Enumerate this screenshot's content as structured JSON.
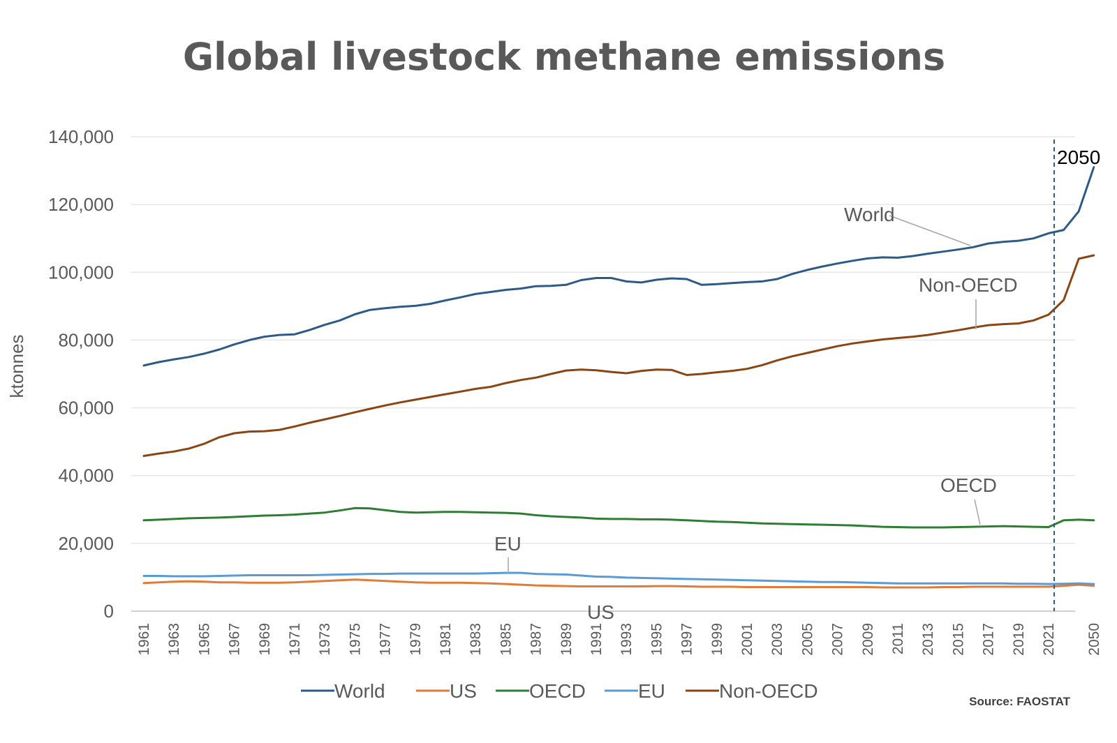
{
  "chart_data": {
    "type": "line",
    "title": "Global livestock methane emissions",
    "ylabel": "ktonnes",
    "xlabel": "",
    "ylim": [
      0,
      140000
    ],
    "y_ticks": [
      0,
      20000,
      40000,
      60000,
      80000,
      100000,
      120000,
      140000
    ],
    "y_tick_labels": [
      "0",
      "20,000",
      "40,000",
      "60,000",
      "80,000",
      "100,000",
      "120,000",
      "140,000"
    ],
    "x": [
      1961,
      1962,
      1963,
      1964,
      1965,
      1966,
      1967,
      1968,
      1969,
      1970,
      1971,
      1972,
      1973,
      1974,
      1975,
      1976,
      1977,
      1978,
      1979,
      1980,
      1981,
      1982,
      1983,
      1984,
      1985,
      1986,
      1987,
      1988,
      1989,
      1990,
      1991,
      1992,
      1993,
      1994,
      1995,
      1996,
      1997,
      1998,
      1999,
      2000,
      2001,
      2002,
      2003,
      2004,
      2005,
      2006,
      2007,
      2008,
      2009,
      2010,
      2011,
      2012,
      2013,
      2014,
      2015,
      2016,
      2017,
      2018,
      2019,
      2020,
      2021,
      2030,
      2040,
      2050
    ],
    "x_tick_labels": [
      "1961",
      "1963",
      "1965",
      "1967",
      "1969",
      "1971",
      "1973",
      "1975",
      "1977",
      "1979",
      "1981",
      "1983",
      "1985",
      "1987",
      "1989",
      "1991",
      "1993",
      "1995",
      "1997",
      "1999",
      "2001",
      "2003",
      "2005",
      "2007",
      "2009",
      "2011",
      "2013",
      "2015",
      "2017",
      "2019",
      "2021",
      "2050"
    ],
    "grid": true,
    "legend_position": "bottom",
    "series": [
      {
        "name": "World",
        "color": "#2e5a87",
        "values": [
          72500,
          73500,
          74300,
          75000,
          76000,
          77200,
          78700,
          80000,
          81000,
          81500,
          81700,
          83000,
          84500,
          85800,
          87600,
          88900,
          89400,
          89800,
          90100,
          90700,
          91700,
          92600,
          93600,
          94200,
          94800,
          95200,
          95900,
          96000,
          96300,
          97700,
          98300,
          98300,
          97300,
          97000,
          97800,
          98200,
          98000,
          96300,
          96500,
          96800,
          97100,
          97300,
          98000,
          99500,
          100700,
          101700,
          102600,
          103400,
          104100,
          104400,
          104300,
          104800,
          105500,
          106100,
          106700,
          107400,
          108500,
          109000,
          109300,
          110000,
          111500,
          112500,
          118000,
          131000
        ]
      },
      {
        "name": "US",
        "color": "#e07b39",
        "values": [
          8300,
          8500,
          8700,
          8800,
          8700,
          8500,
          8500,
          8400,
          8400,
          8400,
          8500,
          8700,
          8900,
          9100,
          9300,
          9100,
          8900,
          8700,
          8500,
          8400,
          8400,
          8400,
          8300,
          8200,
          8000,
          7800,
          7600,
          7500,
          7400,
          7300,
          7300,
          7300,
          7300,
          7300,
          7400,
          7400,
          7300,
          7200,
          7200,
          7200,
          7100,
          7100,
          7100,
          7100,
          7100,
          7100,
          7100,
          7100,
          7100,
          7000,
          7000,
          7000,
          7000,
          7100,
          7100,
          7200,
          7200,
          7200,
          7200,
          7200,
          7200,
          7500,
          7800,
          7500
        ]
      },
      {
        "name": "OECD",
        "color": "#2e7d32",
        "values": [
          26800,
          27000,
          27200,
          27400,
          27500,
          27600,
          27800,
          28000,
          28200,
          28300,
          28500,
          28800,
          29100,
          29700,
          30400,
          30300,
          29800,
          29300,
          29100,
          29200,
          29300,
          29300,
          29200,
          29100,
          29000,
          28800,
          28300,
          28000,
          27800,
          27600,
          27300,
          27200,
          27200,
          27100,
          27100,
          27000,
          26800,
          26600,
          26400,
          26300,
          26100,
          25900,
          25800,
          25700,
          25600,
          25500,
          25400,
          25300,
          25100,
          24900,
          24800,
          24700,
          24700,
          24700,
          24800,
          24900,
          25000,
          25100,
          25000,
          24900,
          24800,
          26800,
          27000,
          26800
        ]
      },
      {
        "name": "EU",
        "color": "#5b9bd5",
        "values": [
          10400,
          10400,
          10300,
          10300,
          10300,
          10400,
          10500,
          10600,
          10600,
          10600,
          10600,
          10600,
          10700,
          10800,
          10900,
          11000,
          11000,
          11100,
          11100,
          11100,
          11100,
          11100,
          11100,
          11200,
          11300,
          11300,
          11000,
          10900,
          10800,
          10500,
          10200,
          10100,
          9900,
          9800,
          9700,
          9600,
          9500,
          9400,
          9300,
          9200,
          9100,
          9000,
          8900,
          8800,
          8700,
          8600,
          8600,
          8500,
          8400,
          8300,
          8200,
          8200,
          8200,
          8200,
          8200,
          8200,
          8200,
          8200,
          8100,
          8100,
          8000,
          8100,
          8200,
          8000
        ]
      },
      {
        "name": "Non-OECD",
        "color": "#8b4513",
        "values": [
          45800,
          46500,
          47100,
          48000,
          49400,
          51300,
          52500,
          53000,
          53100,
          53500,
          54500,
          55600,
          56600,
          57600,
          58700,
          59700,
          60700,
          61600,
          62400,
          63200,
          64000,
          64800,
          65600,
          66200,
          67300,
          68200,
          68900,
          70000,
          71000,
          71300,
          71100,
          70600,
          70200,
          70900,
          71300,
          71200,
          69700,
          70000,
          70500,
          70900,
          71500,
          72600,
          74000,
          75200,
          76200,
          77200,
          78200,
          79000,
          79600,
          80200,
          80600,
          81000,
          81500,
          82200,
          82900,
          83700,
          84400,
          84700,
          84900,
          85800,
          87500,
          91800,
          104000,
          105000
        ]
      }
    ],
    "annotations": [
      {
        "text": "World",
        "target_series": "World"
      },
      {
        "text": "Non-OECD",
        "target_series": "Non-OECD"
      },
      {
        "text": "OECD",
        "target_series": "OECD"
      },
      {
        "text": "EU",
        "target_series": "EU"
      },
      {
        "text": "US",
        "target_series": "US"
      }
    ],
    "reference_line": {
      "x": 2021,
      "label": "2050",
      "style": "dashed"
    },
    "source": "Source: FAOSTAT"
  }
}
